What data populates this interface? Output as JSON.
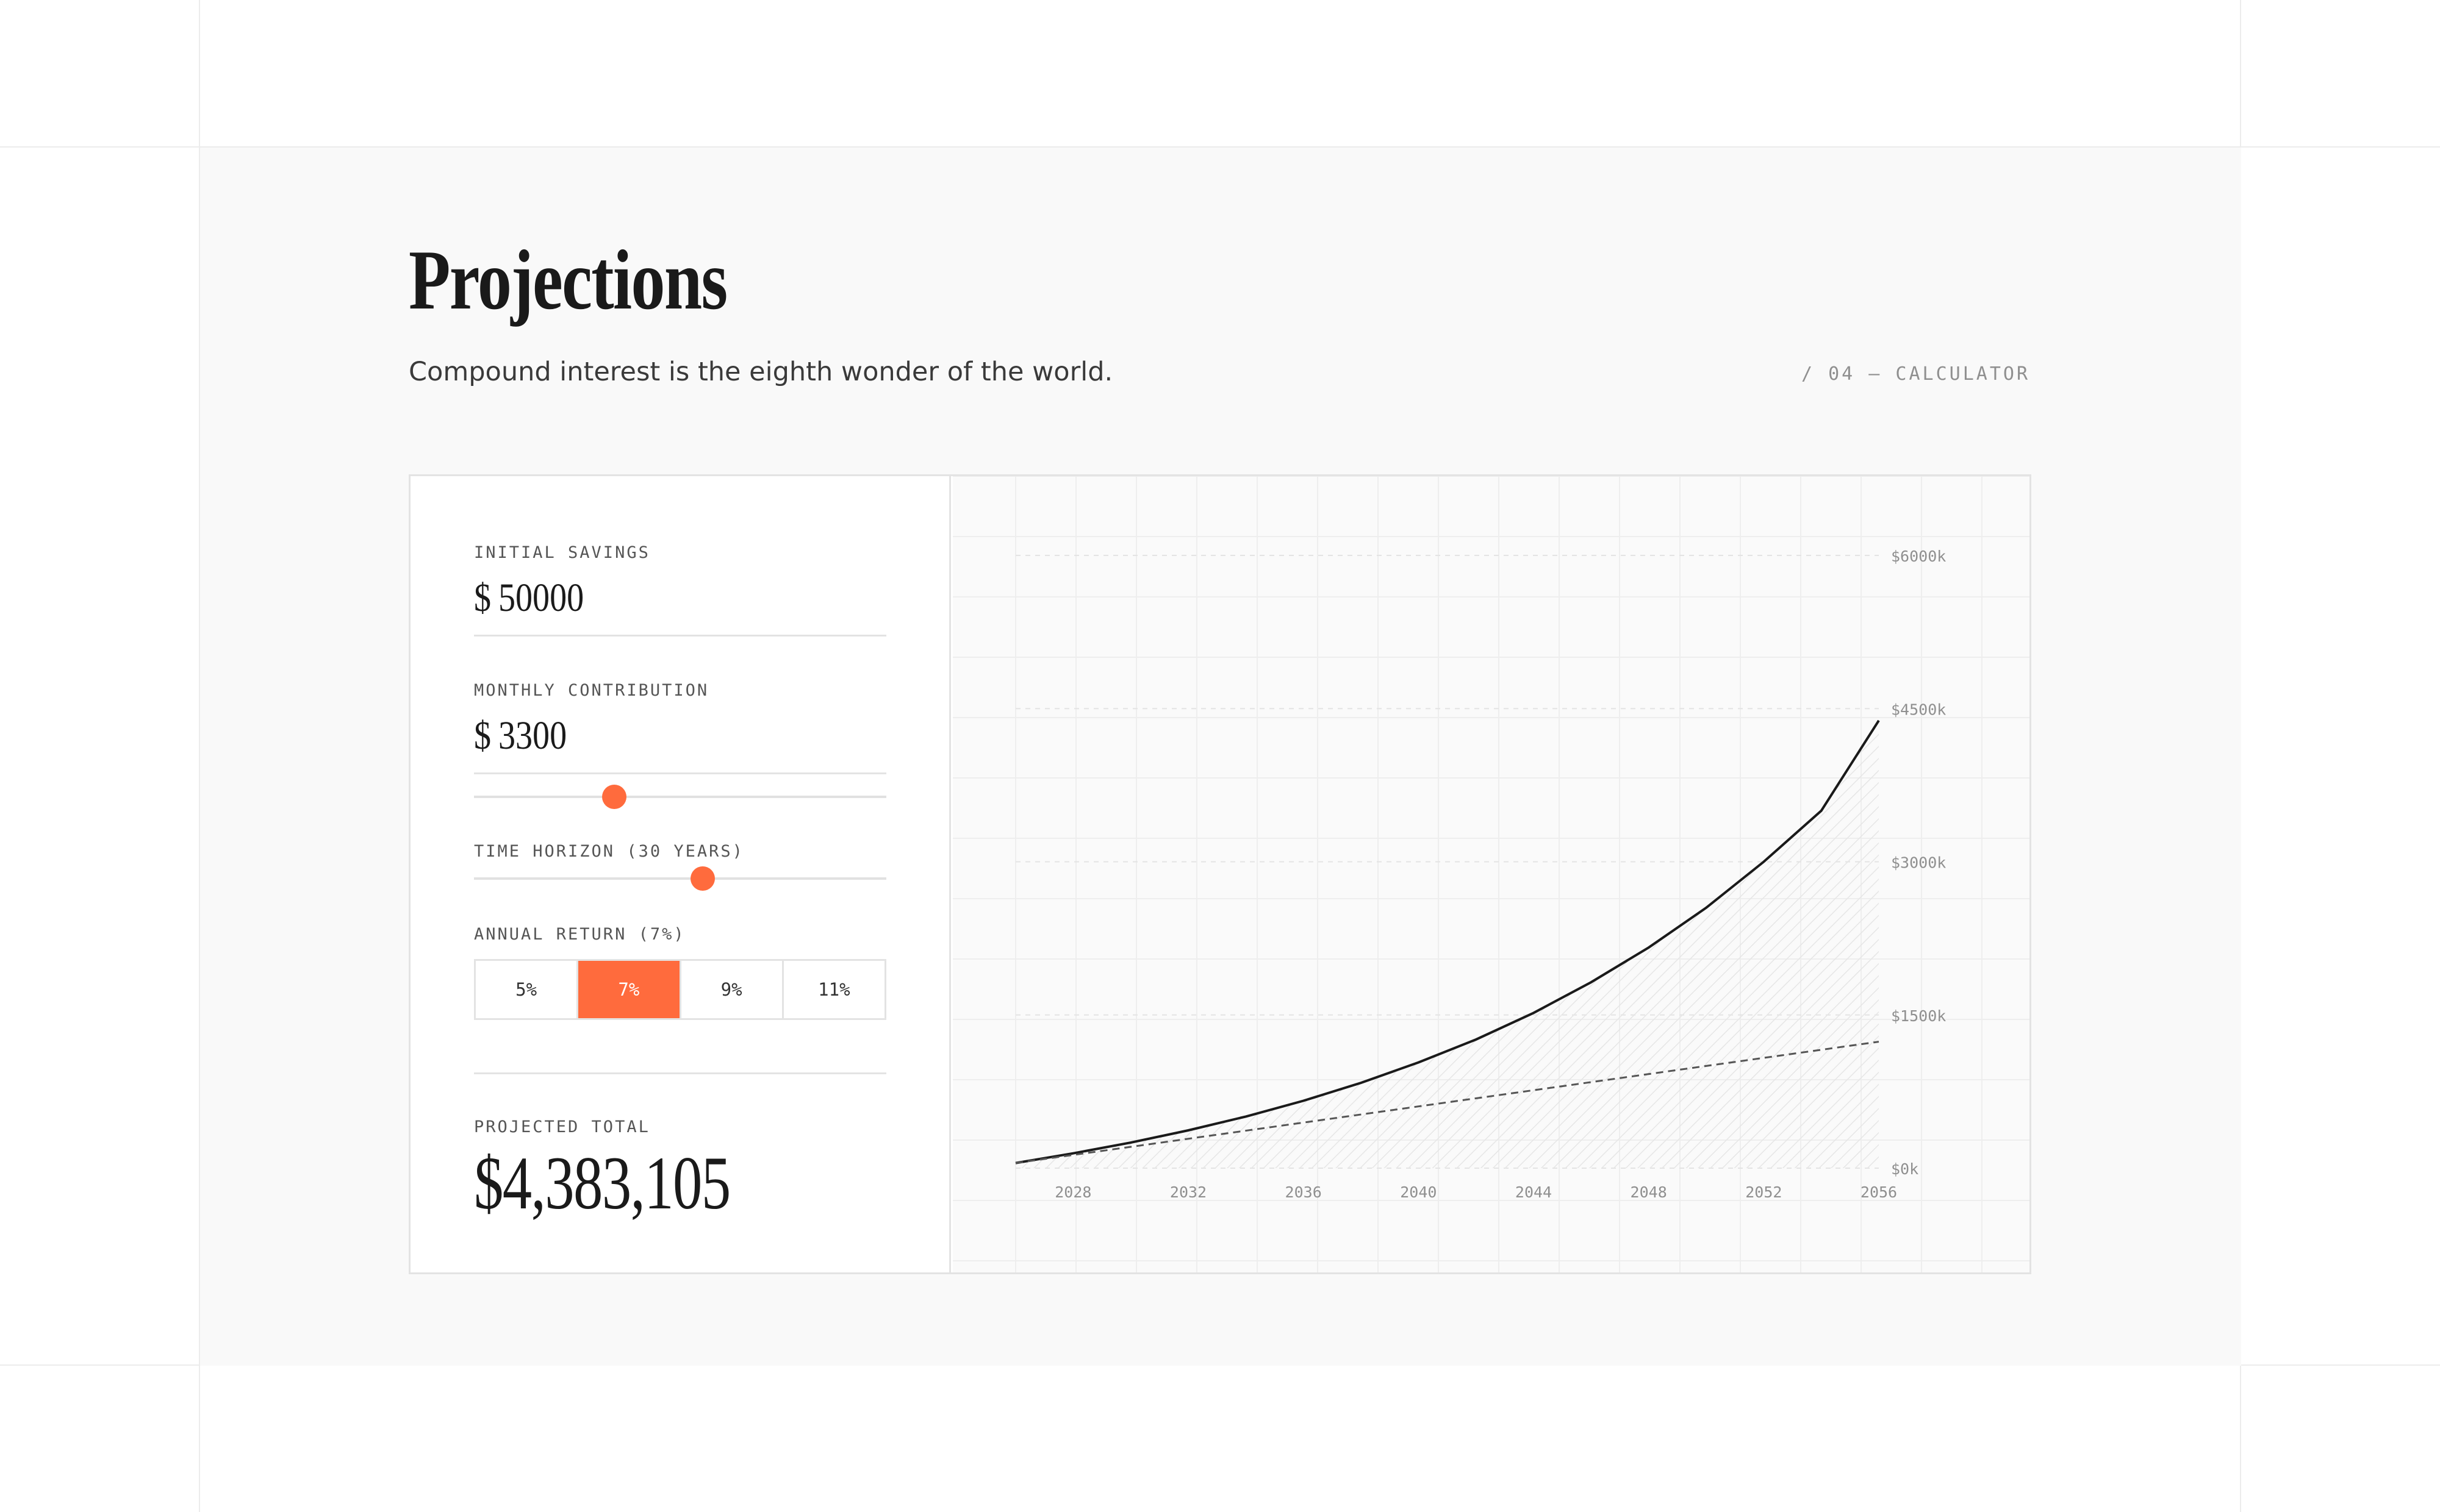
{
  "header": {
    "title": "Projections",
    "subtitle": "Compound interest is the eighth wonder of the world.",
    "section_tag": "/ 04 — CALCULATOR"
  },
  "calculator": {
    "initial_savings": {
      "label": "INITIAL SAVINGS",
      "currency": "$",
      "value": "50000"
    },
    "monthly_contribution": {
      "label": "MONTHLY CONTRIBUTION",
      "currency": "$",
      "value": "3300",
      "slider_fraction": 0.34
    },
    "time_horizon": {
      "label": "TIME HORIZON (30 YEARS)",
      "slider_fraction": 0.555
    },
    "annual_return": {
      "label": "ANNUAL RETURN (7%)",
      "options": [
        "5%",
        "7%",
        "9%",
        "11%"
      ],
      "selected": "7%"
    },
    "projected_total": {
      "label": "PROJECTED TOTAL",
      "value": "$4,383,105"
    }
  },
  "colors": {
    "accent": "#ff6b3d",
    "line": "#1a1a1a",
    "grid": "#eeeeee",
    "tick_text": "#8f8f8f"
  },
  "chart_data": {
    "type": "line",
    "x_ticks": [
      "2028",
      "2032",
      "2036",
      "2040",
      "2044",
      "2048",
      "2052",
      "2056"
    ],
    "y_ticks": [
      "$0k",
      "$1500k",
      "$3000k",
      "$4500k",
      "$6000k"
    ],
    "xlim": [
      2026,
      2056
    ],
    "ylim": [
      0,
      6000
    ],
    "grid": true,
    "series": [
      {
        "style": "solid",
        "x": [
          2026,
          2028,
          2030,
          2032,
          2034,
          2036,
          2038,
          2040,
          2042,
          2044,
          2046,
          2048,
          2050,
          2052,
          2054,
          2056
        ],
        "values": [
          50,
          145,
          250,
          370,
          505,
          660,
          835,
          1035,
          1260,
          1520,
          1820,
          2160,
          2550,
          3000,
          3500,
          4383
        ]
      },
      {
        "style": "dashed",
        "x": [
          2026,
          2056
        ],
        "values": [
          50,
          1238
        ]
      }
    ]
  }
}
